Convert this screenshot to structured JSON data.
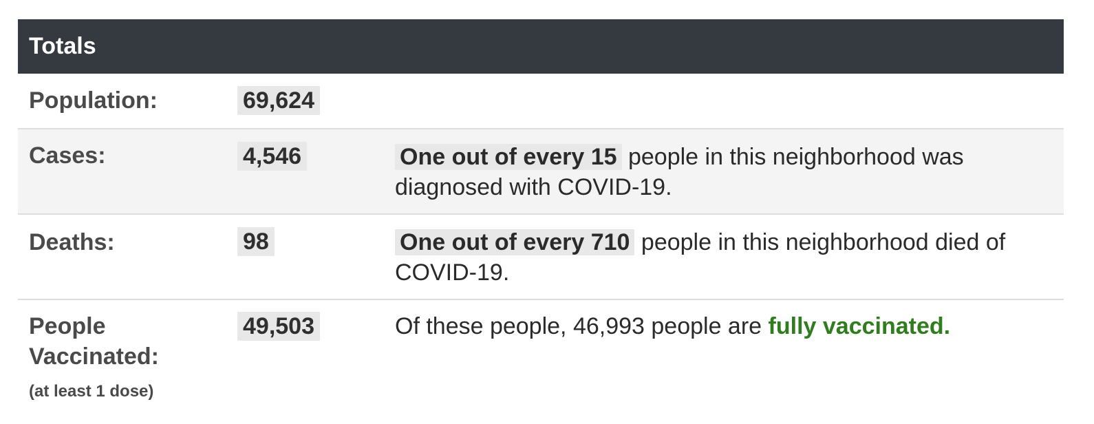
{
  "table": {
    "header": "Totals",
    "rows": {
      "population": {
        "label": "Population:",
        "value": "69,624"
      },
      "cases": {
        "label": "Cases:",
        "value": "4,546",
        "desc_highlight": "One out of every 15",
        "desc_rest": " people in this neighborhood was diagnosed with COVID-19."
      },
      "deaths": {
        "label": "Deaths:",
        "value": "98",
        "desc_highlight": "One out of every 710",
        "desc_rest": " people in this neighborhood died of COVID-19."
      },
      "vaccinated": {
        "label": "People Vaccinated:",
        "sub_label": "(at least 1 dose)",
        "value": "49,503",
        "desc_text": "Of these people, 46,993 people are ",
        "desc_green": "fully vaccinated."
      }
    }
  },
  "colors": {
    "header_bg": "#343a40",
    "highlight_bg": "#e8e8e8",
    "accent_green": "#2f7d1f",
    "alt_row_bg": "#f4f4f4"
  }
}
